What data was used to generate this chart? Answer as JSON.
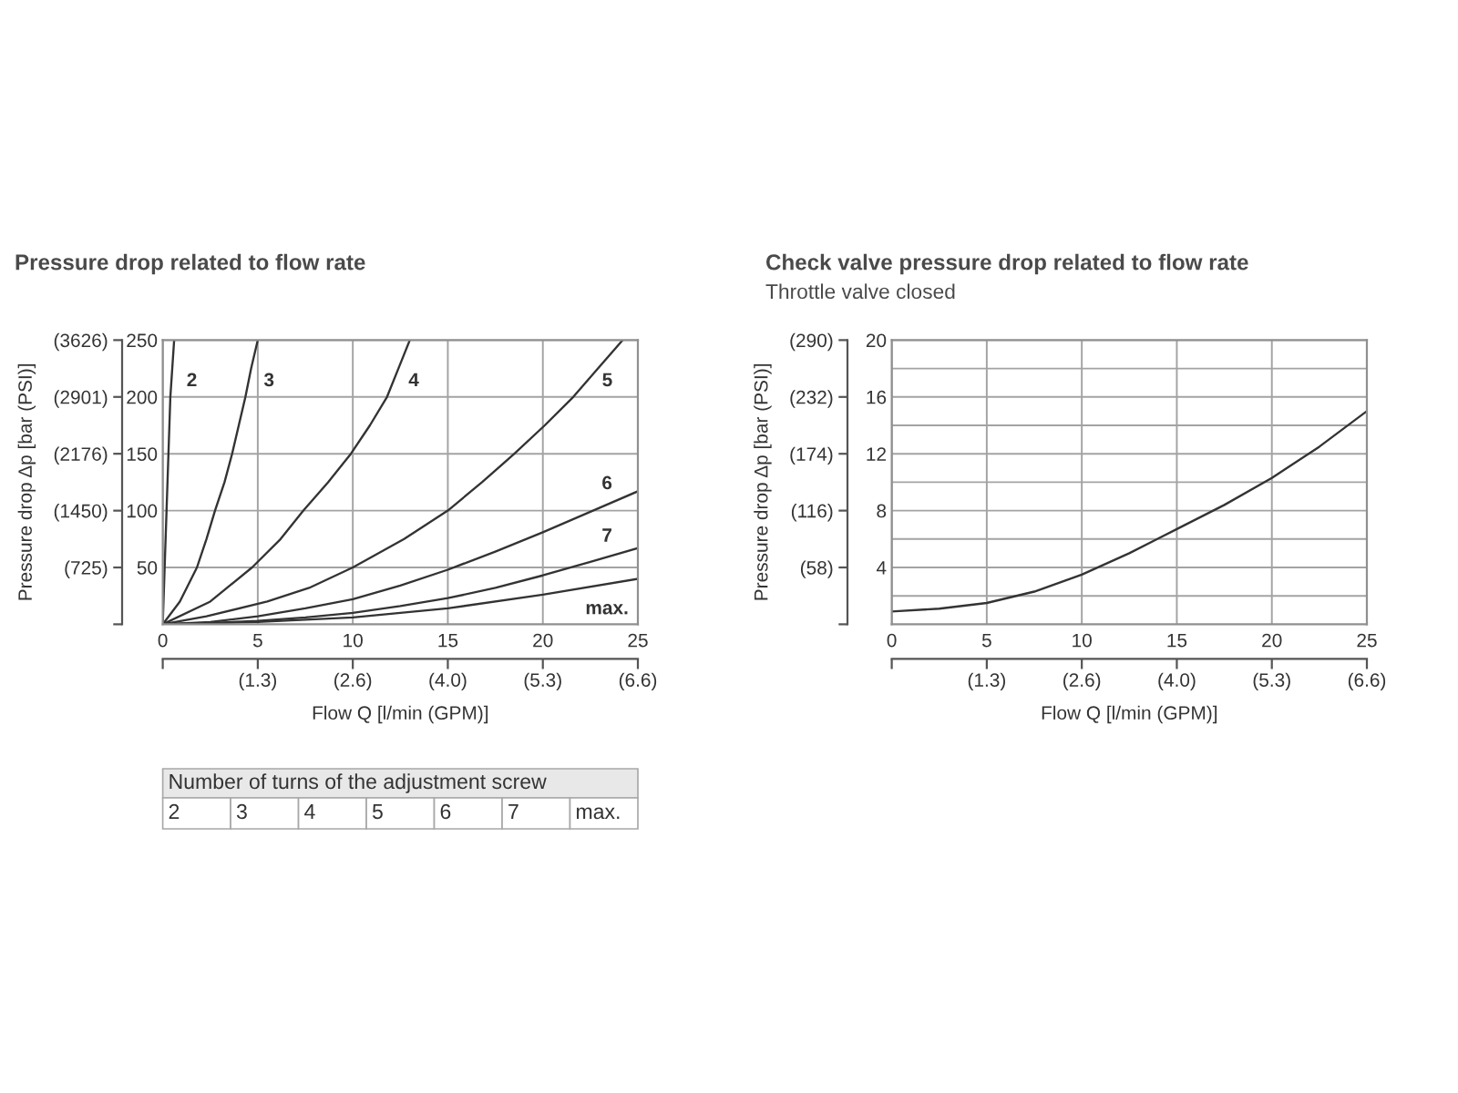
{
  "chart_data": [
    {
      "type": "line",
      "title": "Pressure drop related to flow rate",
      "xlabel": "Flow Q [l/min (GPM)]",
      "y2label": "Pressure drop Δp [bar (PSI)]",
      "legend_title": "Number of turns of the adjustment screw",
      "legend": "bottom",
      "grid": true,
      "xlim": [
        0,
        25
      ],
      "xticks": [
        0,
        5,
        10,
        15,
        20,
        25
      ],
      "x2lim": [
        0,
        6.6
      ],
      "x2ticks": [
        {
          "value": 0,
          "label": null
        },
        {
          "value": 1.32,
          "label": "(1.3)"
        },
        {
          "value": 2.64,
          "label": "(2.6)"
        },
        {
          "value": 3.96,
          "label": "(4.0)"
        },
        {
          "value": 5.28,
          "label": "(5.3)"
        },
        {
          "value": 6.6,
          "label": "(6.6)"
        }
      ],
      "ylim": [
        0,
        250
      ],
      "yticks": [
        50,
        100,
        150,
        200,
        250
      ],
      "y2lim": [
        0,
        3626
      ],
      "y2ticks": [
        {
          "value": 0,
          "label": null
        },
        {
          "value": 725,
          "label": "(725)"
        },
        {
          "value": 1450,
          "label": "(1450)"
        },
        {
          "value": 2176,
          "label": "(2176)"
        },
        {
          "value": 2901,
          "label": "(2901)"
        },
        {
          "value": 3626,
          "label": "(3626)"
        }
      ],
      "series": [
        {
          "name": "2",
          "color": "#333333",
          "x": [
            0,
            0.1,
            0.2,
            0.3,
            0.4,
            0.6
          ],
          "values": [
            0,
            50,
            100,
            150,
            200,
            250
          ]
        },
        {
          "name": "3",
          "color": "#333333",
          "x": [
            0,
            0.9,
            1.8,
            2.3,
            2.75,
            3.25,
            3.65,
            4.0,
            4.35,
            4.65,
            5.0
          ],
          "values": [
            0,
            20,
            50,
            75,
            100,
            125,
            150,
            175,
            200,
            225,
            250
          ]
        },
        {
          "name": "4",
          "color": "#333333",
          "x": [
            0,
            2.5,
            4.7,
            6.2,
            7.4,
            8.7,
            9.9,
            10.9,
            11.8,
            12.4,
            13.0
          ],
          "values": [
            0,
            20,
            50,
            75,
            100,
            125,
            150,
            175,
            200,
            225,
            250
          ]
        },
        {
          "name": "5",
          "color": "#333333",
          "x": [
            0,
            2.3,
            5.5,
            7.7,
            10.0,
            12.7,
            15.0,
            16.8,
            18.5,
            20.1,
            21.6,
            22.9,
            24.2
          ],
          "values": [
            0,
            7,
            20,
            32,
            50,
            75,
            100,
            125,
            150,
            175,
            200,
            225,
            250
          ]
        },
        {
          "name": "6",
          "color": "#333333",
          "x": [
            0,
            2.5,
            5,
            7.5,
            10,
            12.5,
            15,
            17.5,
            20,
            22.5,
            25
          ],
          "values": [
            0,
            2,
            7,
            14,
            22,
            34,
            48,
            64,
            81,
            99,
            117
          ]
        },
        {
          "name": "7",
          "color": "#333333",
          "x": [
            0,
            2.5,
            5,
            7.5,
            10,
            12.5,
            15,
            17.5,
            20,
            22.5,
            25
          ],
          "values": [
            0,
            1,
            3,
            6,
            10,
            16,
            23,
            32,
            43,
            55,
            67
          ]
        },
        {
          "name": "max.",
          "color": "#333333",
          "x": [
            0,
            5,
            10,
            15,
            20,
            25
          ],
          "values": [
            0,
            2,
            6,
            14,
            26,
            40
          ]
        }
      ]
    },
    {
      "type": "line",
      "title": "Check valve pressure drop related to flow rate",
      "subtitle": "Throttle valve closed",
      "xlabel": "Flow Q [l/min (GPM)]",
      "y2label": "Pressure drop Δp [bar (PSI)]",
      "grid": true,
      "xlim": [
        0,
        25
      ],
      "xticks": [
        0,
        5,
        10,
        15,
        20,
        25
      ],
      "x2lim": [
        0,
        6.6
      ],
      "x2ticks": [
        {
          "value": 0,
          "label": null
        },
        {
          "value": 1.32,
          "label": "(1.3)"
        },
        {
          "value": 2.64,
          "label": "(2.6)"
        },
        {
          "value": 3.96,
          "label": "(4.0)"
        },
        {
          "value": 5.28,
          "label": "(5.3)"
        },
        {
          "value": 6.6,
          "label": "(6.6)"
        }
      ],
      "ylim": [
        0,
        20
      ],
      "yticks": [
        {
          "value": 2,
          "label": null
        },
        4,
        {
          "value": 6,
          "label": null
        },
        8,
        {
          "value": 10,
          "label": null
        },
        12,
        {
          "value": 14,
          "label": null
        },
        16,
        {
          "value": 18,
          "label": null
        },
        20
      ],
      "y2lim": [
        0,
        290
      ],
      "y2ticks": [
        {
          "value": 0,
          "label": null
        },
        {
          "value": 58,
          "label": "(58)"
        },
        {
          "value": 116,
          "label": "(116)"
        },
        {
          "value": 174,
          "label": "(174)"
        },
        {
          "value": 232,
          "label": "(232)"
        },
        {
          "value": 290,
          "label": "(290)"
        }
      ],
      "series": [
        {
          "color": "#333333",
          "x": [
            0,
            2.5,
            5,
            7.5,
            10,
            12.5,
            15,
            17.5,
            20,
            22.5,
            25
          ],
          "values": [
            0.9,
            1.1,
            1.5,
            2.3,
            3.5,
            5.0,
            6.7,
            8.4,
            10.3,
            12.5,
            15.0
          ]
        }
      ]
    }
  ]
}
